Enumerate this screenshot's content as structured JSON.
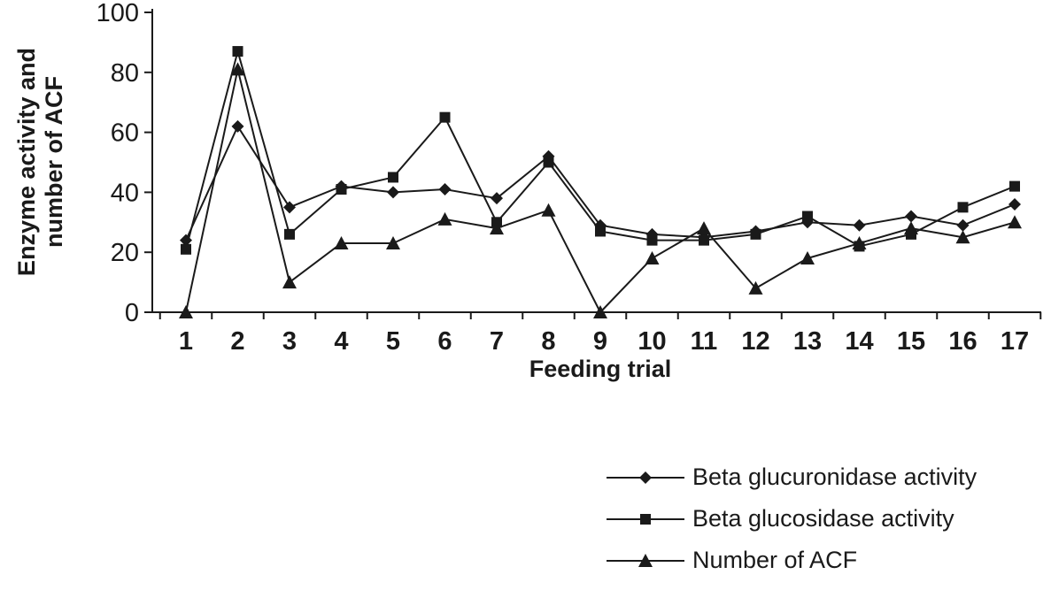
{
  "figure": {
    "background": "#ffffff",
    "line_color": "#1a1a1a"
  },
  "chart_data": {
    "type": "line",
    "title": "",
    "xlabel": "Feeding trial",
    "ylabel": "Enzyme activity and number of ACF",
    "ylabel_lines": [
      "Enzyme activity and",
      "number of ACF"
    ],
    "x": [
      1,
      2,
      3,
      4,
      5,
      6,
      7,
      8,
      9,
      10,
      11,
      12,
      13,
      14,
      15,
      16,
      17
    ],
    "ylim": [
      0,
      100
    ],
    "yticks": [
      0,
      20,
      40,
      60,
      80,
      100
    ],
    "grid": false,
    "legend_position": "bottom-right",
    "series": [
      {
        "name": "Beta glucuronidase activity",
        "marker": "diamond",
        "color": "#1a1a1a",
        "values": [
          24,
          62,
          35,
          42,
          40,
          41,
          38,
          52,
          29,
          26,
          25,
          27,
          30,
          29,
          32,
          29,
          36
        ]
      },
      {
        "name": "Beta glucosidase activity",
        "marker": "square",
        "color": "#1a1a1a",
        "values": [
          21,
          87,
          26,
          41,
          45,
          65,
          30,
          50,
          27,
          24,
          24,
          26,
          32,
          22,
          26,
          35,
          42
        ]
      },
      {
        "name": "Number of ACF",
        "marker": "triangle",
        "color": "#1a1a1a",
        "values": [
          0,
          81,
          10,
          23,
          23,
          31,
          28,
          34,
          0,
          18,
          28,
          8,
          18,
          23,
          28,
          25,
          30
        ]
      }
    ]
  }
}
